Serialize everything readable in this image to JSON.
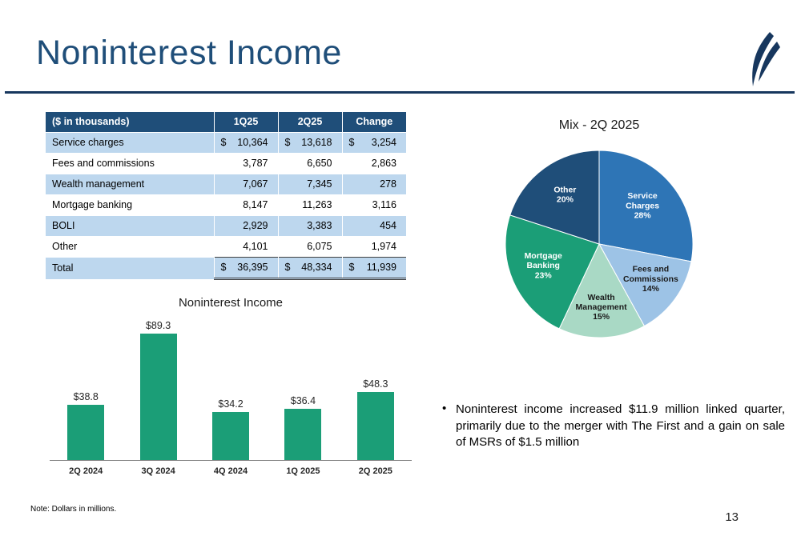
{
  "slide": {
    "title": "Noninterest Income",
    "page_number": "13",
    "footnote": "Note: Dollars in millions.",
    "commentary": {
      "bullet_marker": "•",
      "text": "Noninterest income increased $11.9 million linked quarter, primarily due to the merger with The First and a gain on sale of MSRs of $1.5 million"
    }
  },
  "colors": {
    "navy": "#1F4E79",
    "rule_navy": "#17375E",
    "row_blue": "#BDD7EE",
    "medium_blue": "#2E75B6",
    "light_blue": "#9DC3E6",
    "pale_green": "#A9D9C5",
    "green": "#1B9E77"
  },
  "table": {
    "header": [
      "($ in thousands)",
      "1Q25",
      "2Q25",
      "Change"
    ],
    "rows": [
      [
        "Service charges",
        "$",
        "10,364",
        "$",
        "13,618",
        "$",
        "3,254"
      ],
      [
        "Fees and commissions",
        "",
        "3,787",
        "",
        "6,650",
        "",
        "2,863"
      ],
      [
        "Wealth management",
        "",
        "7,067",
        "",
        "7,345",
        "",
        "278"
      ],
      [
        "Mortgage banking",
        "",
        "8,147",
        "",
        "11,263",
        "",
        "3,116"
      ],
      [
        "BOLI",
        "",
        "2,929",
        "",
        "3,383",
        "",
        "454"
      ],
      [
        "Other",
        "",
        "4,101",
        "",
        "6,075",
        "",
        "1,974"
      ],
      [
        "Total",
        "$",
        "36,395",
        "$",
        "48,334",
        "$",
        "11,939"
      ]
    ]
  },
  "chart_data": [
    {
      "type": "bar",
      "title": "Noninterest Income",
      "categories": [
        "2Q 2024",
        "3Q 2024",
        "4Q 2024",
        "1Q 2025",
        "2Q 2025"
      ],
      "values": [
        38.8,
        89.3,
        34.2,
        36.4,
        48.3
      ],
      "labels": [
        "$38.8",
        "$89.3",
        "$34.2",
        "$36.4",
        "$48.3"
      ],
      "xlabel": "",
      "ylabel": "",
      "ylim": [
        0,
        90
      ],
      "grid": false,
      "bar_color": "#1B9E77",
      "units": "millions of dollars"
    },
    {
      "type": "pie",
      "title": "Mix - 2Q 2025",
      "start_angle_deg": 0,
      "direction": "clockwise",
      "slices": [
        {
          "name": "Service Charges",
          "value": 28,
          "color": "#2E75B6",
          "text_color": "#FFFFFF",
          "label_lines": [
            "Service",
            "Charges",
            "28%"
          ],
          "label_r": 0.6
        },
        {
          "name": "Fees and Commissions",
          "value": 14,
          "color": "#9DC3E6",
          "text_color": "#1a1a1a",
          "label_lines": [
            "Fees and",
            "Commissions",
            "14%"
          ],
          "label_r": 0.68
        },
        {
          "name": "Wealth Management",
          "value": 15,
          "color": "#A9D9C5",
          "text_color": "#1a1a1a",
          "label_lines": [
            "Wealth",
            "Management",
            "15%"
          ],
          "label_r": 0.7
        },
        {
          "name": "Mortgage Banking",
          "value": 23,
          "color": "#1B9E77",
          "text_color": "#FFFFFF",
          "label_lines": [
            "Mortgage",
            "Banking",
            "23%"
          ],
          "label_r": 0.65
        },
        {
          "name": "Other",
          "value": 20,
          "color": "#1F4E79",
          "text_color": "#FFFFFF",
          "label_lines": [
            "Other",
            "20%"
          ],
          "label_r": 0.62
        }
      ]
    }
  ]
}
